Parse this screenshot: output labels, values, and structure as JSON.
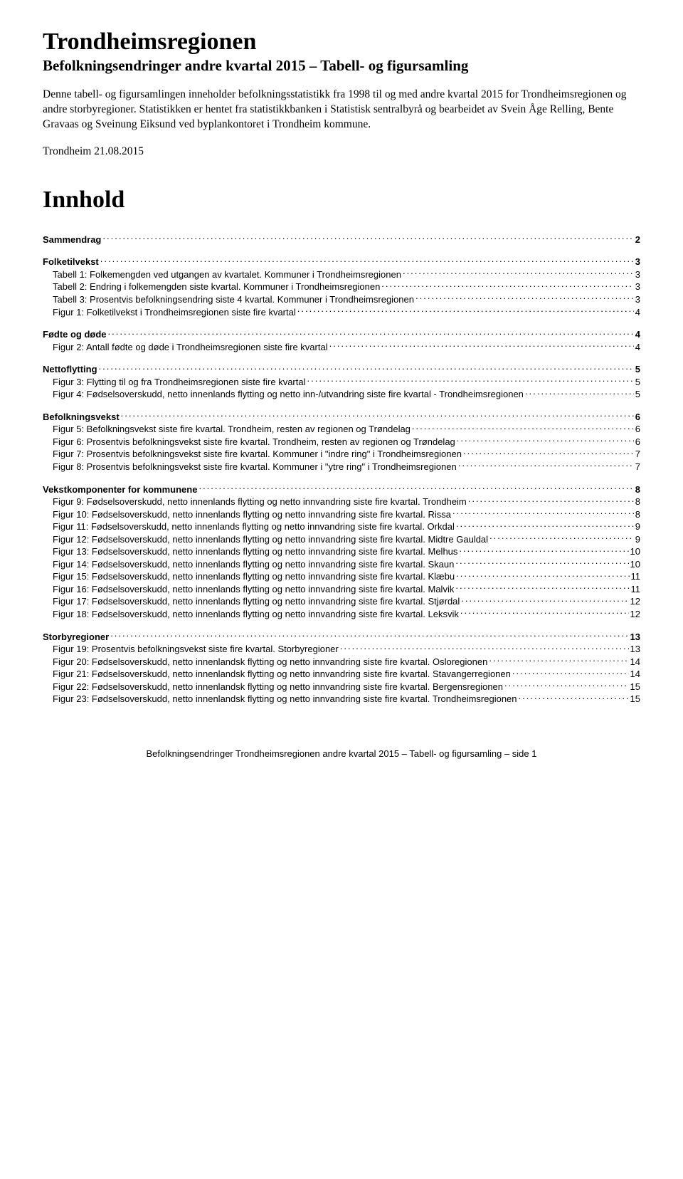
{
  "title": "Trondheimsregionen",
  "subtitle": "Befolkningsendringer andre kvartal 2015 – Tabell- og figursamling",
  "intro": "Denne tabell- og figursamlingen inneholder befolkningsstatistikk fra 1998 til og med andre kvartal 2015 for Trondheimsregionen og andre storbyregioner. Statistikken er hentet fra statistikkbanken i Statistisk sentralbyrå og bearbeidet av Svein Åge Relling, Bente Gravaas og Sveinung Eiksund ved byplankontoret i Trondheim kommune.",
  "dateline": "Trondheim 21.08.2015",
  "tocHeader": "Innhold",
  "toc": [
    {
      "heading": {
        "label": "Sammendrag",
        "page": "2"
      },
      "items": []
    },
    {
      "heading": {
        "label": "Folketilvekst",
        "page": "3"
      },
      "items": [
        {
          "label": "Tabell 1: Folkemengden ved utgangen av kvartalet. Kommuner i Trondheimsregionen",
          "page": "3"
        },
        {
          "label": "Tabell 2: Endring i folkemengden siste kvartal. Kommuner i Trondheimsregionen",
          "page": "3"
        },
        {
          "label": "Tabell 3: Prosentvis befolkningsendring siste 4 kvartal. Kommuner i Trondheimsregionen",
          "page": "3"
        },
        {
          "label": "Figur 1: Folketilvekst i Trondheimsregionen siste fire kvartal",
          "page": "4"
        }
      ]
    },
    {
      "heading": {
        "label": "Fødte og døde",
        "page": "4"
      },
      "items": [
        {
          "label": "Figur 2: Antall fødte og døde i Trondheimsregionen siste fire kvartal",
          "page": "4"
        }
      ]
    },
    {
      "heading": {
        "label": "Nettoflytting",
        "page": "5"
      },
      "items": [
        {
          "label": "Figur 3: Flytting til og fra Trondheimsregionen siste fire kvartal",
          "page": "5"
        },
        {
          "label": "Figur 4: Fødselsoverskudd, netto innenlands flytting og netto inn-/utvandring siste fire kvartal - Trondheimsregionen",
          "page": "5"
        }
      ]
    },
    {
      "heading": {
        "label": "Befolkningsvekst",
        "page": "6"
      },
      "items": [
        {
          "label": "Figur 5: Befolkningsvekst siste fire kvartal. Trondheim, resten av regionen og Trøndelag",
          "page": "6"
        },
        {
          "label": "Figur 6: Prosentvis befolkningsvekst siste fire kvartal. Trondheim, resten av regionen og Trøndelag",
          "page": "6"
        },
        {
          "label": "Figur 7: Prosentvis befolkningsvekst siste fire kvartal. Kommuner i \"indre ring\" i Trondheimsregionen",
          "page": "7"
        },
        {
          "label": "Figur 8: Prosentvis befolkningsvekst siste fire kvartal. Kommuner i \"ytre ring\" i Trondheimsregionen",
          "page": "7"
        }
      ]
    },
    {
      "heading": {
        "label": "Vekstkomponenter for kommunene",
        "page": "8"
      },
      "items": [
        {
          "label": "Figur 9: Fødselsoverskudd, netto innenlands flytting og netto innvandring siste fire kvartal. Trondheim",
          "page": "8"
        },
        {
          "label": "Figur 10: Fødselsoverskudd, netto innenlands flytting og netto innvandring siste fire kvartal. Rissa",
          "page": "8"
        },
        {
          "label": "Figur 11: Fødselsoverskudd, netto innenlands flytting og netto innvandring siste fire kvartal. Orkdal",
          "page": "9"
        },
        {
          "label": "Figur 12: Fødselsoverskudd, netto innenlands flytting og netto innvandring siste fire kvartal. Midtre Gauldal",
          "page": "9"
        },
        {
          "label": "Figur 13: Fødselsoverskudd, netto innenlands flytting og netto innvandring siste fire kvartal. Melhus",
          "page": "10"
        },
        {
          "label": "Figur 14: Fødselsoverskudd, netto innenlands flytting og netto innvandring siste fire kvartal. Skaun",
          "page": "10"
        },
        {
          "label": "Figur 15: Fødselsoverskudd, netto innenlands flytting og netto innvandring siste fire kvartal. Klæbu",
          "page": "11"
        },
        {
          "label": "Figur 16: Fødselsoverskudd, netto innenlands flytting og netto innvandring siste fire kvartal. Malvik",
          "page": "11"
        },
        {
          "label": "Figur 17: Fødselsoverskudd, netto innenlands flytting og netto innvandring siste fire kvartal. Stjørdal",
          "page": "12"
        },
        {
          "label": "Figur 18: Fødselsoverskudd, netto innenlands flytting og netto innvandring siste fire kvartal. Leksvik",
          "page": "12"
        }
      ]
    },
    {
      "heading": {
        "label": "Storbyregioner",
        "page": "13"
      },
      "items": [
        {
          "label": "Figur 19: Prosentvis befolkningsvekst siste fire kvartal. Storbyregioner",
          "page": "13"
        },
        {
          "label": "Figur 20: Fødselsoverskudd, netto innenlandsk flytting og netto innvandring siste fire kvartal. Osloregionen",
          "page": "14"
        },
        {
          "label": "Figur 21: Fødselsoverskudd, netto innenlandsk flytting og netto innvandring siste fire kvartal. Stavangerregionen",
          "page": "14"
        },
        {
          "label": "Figur 22: Fødselsoverskudd, netto innenlandsk flytting og netto innvandring siste fire kvartal. Bergensregionen",
          "page": "15"
        },
        {
          "label": "Figur 23: Fødselsoverskudd, netto innenlandsk flytting og netto innvandring siste fire kvartal. Trondheimsregionen",
          "page": "15"
        }
      ]
    }
  ],
  "footer": "Befolkningsendringer Trondheimsregionen andre kvartal 2015 – Tabell- og figursamling – side 1"
}
